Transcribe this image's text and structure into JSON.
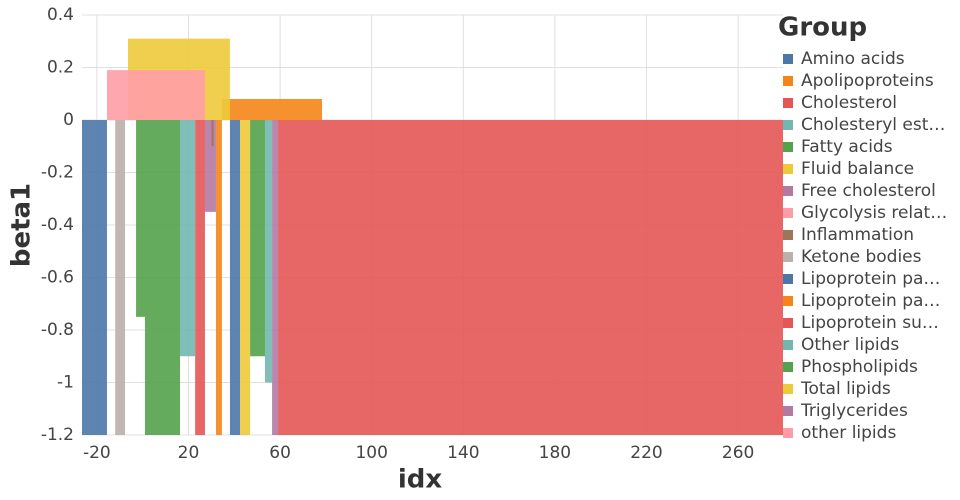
{
  "chart_data": {
    "type": "step-area",
    "x_label": "idx",
    "y_label": "beta1",
    "legend_title": "Group",
    "legend": "right",
    "grid": true,
    "xlim": [
      -26.5,
      279.6
    ],
    "ylim": [
      -1.2,
      0.4
    ],
    "xticks": [
      -20,
      20,
      60,
      100,
      140,
      180,
      220,
      260
    ],
    "yticks": [
      -1.2,
      -1,
      -0.8,
      -0.6,
      -0.4,
      -0.2,
      0,
      0.2,
      0.4
    ],
    "series": [
      {
        "name": "Amino acids",
        "color": "#4c78a8",
        "x": [
          -26.5,
          -15.6
        ],
        "values": [
          -1.2,
          -1.2
        ]
      },
      {
        "name": "Apolipoproteins",
        "color": "#f58518",
        "x": [
          32,
          34.6
        ],
        "values": [
          -1.2,
          -1.2
        ]
      },
      {
        "name": "Cholesterol",
        "color": "#e45756",
        "x": [
          22.9,
          27.2
        ],
        "values": [
          -1.2,
          -1.2
        ]
      },
      {
        "name": "Cholesteryl est…",
        "color": "#72b7b2",
        "x": [
          16.3,
          22.9
        ],
        "values": [
          -0.9,
          -0.9
        ]
      },
      {
        "name": "Fatty acids",
        "color": "#54a24b",
        "x": [
          -2.9,
          1,
          16.3
        ],
        "values": [
          -0.75,
          -1.2,
          -1.2
        ]
      },
      {
        "name": "Fluid balance",
        "color": "#eeca3b",
        "x": [
          42.5,
          46.9
        ],
        "values": [
          -1.2,
          -1.2
        ]
      },
      {
        "name": "Free cholesterol",
        "color": "#b279a2",
        "x": [
          27.2,
          32
        ],
        "values": [
          -0.35,
          -0.35
        ]
      },
      {
        "name": "Glycolysis relat…",
        "color": "#ff9da6",
        "x": [
          -15.6,
          -6.4
        ],
        "values": [
          0.19,
          0.19
        ]
      },
      {
        "name": "Inflammation",
        "color": "#9d755d",
        "x": [
          30,
          31
        ],
        "values": [
          -0.1,
          -0.1
        ]
      },
      {
        "name": "Ketone bodies",
        "color": "#bab0ac",
        "x": [
          -12,
          -7.7
        ],
        "values": [
          -1.2,
          -1.2
        ]
      },
      {
        "name": "Lipoprotein pa…",
        "color": "#4c78a8",
        "x": [
          38.1,
          42.5
        ],
        "values": [
          -1.2,
          -1.2
        ]
      },
      {
        "name": "Lipoprotein pa…",
        "color": "#f58518",
        "x": [
          34.6,
          78.3
        ],
        "values": [
          0.08,
          0.08
        ]
      },
      {
        "name": "Lipoprotein su…",
        "color": "#e45756",
        "x": [
          59.1,
          279.6
        ],
        "values": [
          -1.2,
          -1.2
        ]
      },
      {
        "name": "Other lipids",
        "color": "#72b7b2",
        "x": [
          53.4,
          56.5
        ],
        "values": [
          -1.0,
          -1.0
        ]
      },
      {
        "name": "Phospholipids",
        "color": "#54a24b",
        "x": [
          46.9,
          53.4
        ],
        "values": [
          -0.9,
          -0.9
        ]
      },
      {
        "name": "Total lipids",
        "color": "#eeca3b",
        "x": [
          -6.4,
          38.1
        ],
        "values": [
          0.31,
          0.31
        ]
      },
      {
        "name": "Triglycerides",
        "color": "#b279a2",
        "x": [
          56.5,
          59.1
        ],
        "values": [
          -1.2,
          -1.2
        ]
      },
      {
        "name": "other lipids",
        "color": "#ff9da6",
        "x": [
          -6.4,
          27.2
        ],
        "values": [
          0.19,
          0.19
        ]
      }
    ]
  }
}
